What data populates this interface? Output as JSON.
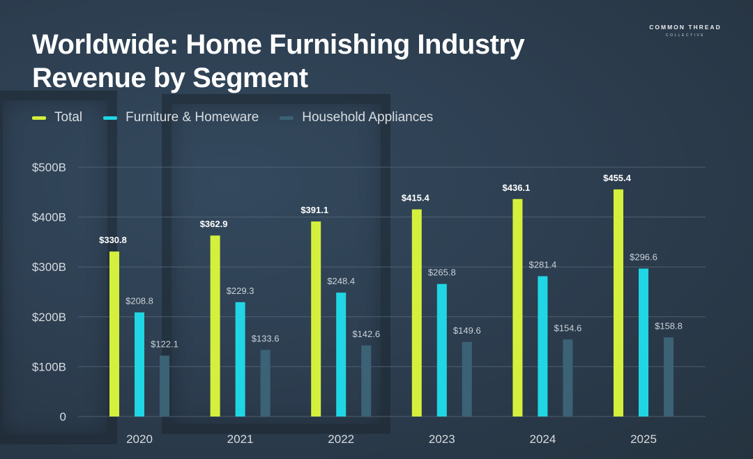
{
  "brand": {
    "line1": "COMMON THREAD",
    "line2": "COLLECTIVE"
  },
  "colors": {
    "total": "#d4f03c",
    "furniture": "#20d6e4",
    "appliances": "#3b6275",
    "grid": "#56687a",
    "text": "#d6dbe0"
  },
  "chart_data": {
    "type": "bar",
    "title": "Worldwide: Home Furnishing Industry Revenue by Segment",
    "title_lines": [
      "Worldwide: Home Furnishing Industry",
      "Revenue by Segment"
    ],
    "categories": [
      "2020",
      "2021",
      "2022",
      "2023",
      "2024",
      "2025"
    ],
    "series": [
      {
        "name": "Total",
        "values": [
          330.8,
          362.9,
          391.1,
          415.4,
          436.1,
          455.4
        ],
        "labels": [
          "$330.8",
          "$362.9",
          "$391.1",
          "$415.4",
          "$436.1",
          "$455.4"
        ]
      },
      {
        "name": "Furniture & Homeware",
        "values": [
          208.8,
          229.3,
          248.4,
          265.8,
          281.4,
          296.6
        ],
        "labels": [
          "$208.8",
          "$229.3",
          "$248.4",
          "$265.8",
          "$281.4",
          "$296.6"
        ]
      },
      {
        "name": "Household Appliances",
        "values": [
          122.1,
          133.6,
          142.6,
          149.6,
          154.6,
          158.8
        ],
        "labels": [
          "$122.1",
          "$133.6",
          "$142.6",
          "$149.6",
          "$154.6",
          "$158.8"
        ]
      }
    ],
    "y_ticks": [
      0,
      100,
      200,
      300,
      400,
      500
    ],
    "y_tick_labels": [
      "0",
      "$100B",
      "$200B",
      "$300B",
      "$400B",
      "$500B"
    ],
    "ylim": [
      0,
      500
    ],
    "grid": true,
    "legend_position": "top-left"
  }
}
